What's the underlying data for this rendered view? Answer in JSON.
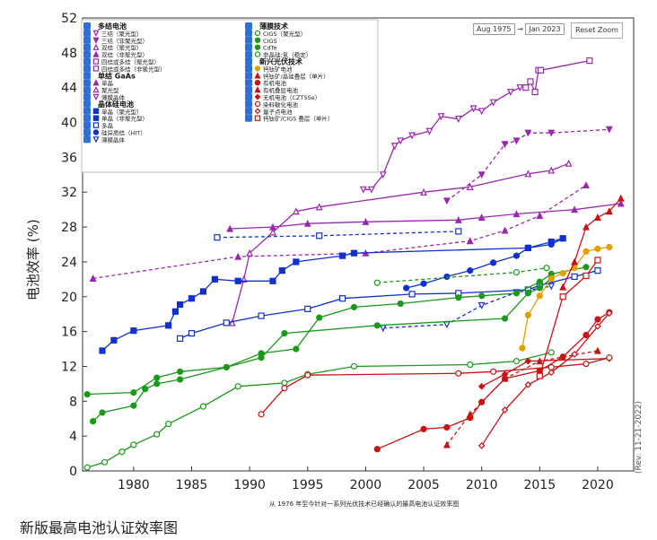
{
  "range": {
    "start": "Aug 1975",
    "arrow": "→",
    "end": "Jan 2023"
  },
  "reset_label": "Reset Zoom",
  "caption_note": "从 1976 年至今针对一系列光伏技术已经确认的最高电池认证效率图",
  "bottom_title": "新版最高电池认证效率图",
  "rev_label": "(Rev. 11-21-2022)",
  "legend_groups": [
    {
      "title": "多结电池",
      "items": [
        {
          "label": "三结（聚光型）",
          "color": "#9b27b0",
          "marker": "tri-down-open"
        },
        {
          "label": "三结（非聚光型）",
          "color": "#9b27b0",
          "marker": "tri-down"
        },
        {
          "label": "双结（聚光型）",
          "color": "#9b27b0",
          "marker": "tri-open"
        },
        {
          "label": "双结（非聚光型）",
          "color": "#9b27b0",
          "marker": "tri"
        },
        {
          "label": "四结或多结（聚光型）",
          "color": "#9b27b0",
          "marker": "sq-open"
        },
        {
          "label": "四结或多结（非聚光型）",
          "color": "#9b27b0",
          "marker": "sq-open"
        }
      ]
    },
    {
      "title": "单结 GaAs",
      "items": [
        {
          "label": "单晶",
          "color": "#9b27b0",
          "marker": "tri"
        },
        {
          "label": "聚光型",
          "color": "#9b27b0",
          "marker": "tri-open"
        },
        {
          "label": "薄膜晶体",
          "color": "#9b27b0",
          "marker": "tri-down-open"
        }
      ]
    },
    {
      "title": "晶体硅电池",
      "items": [
        {
          "label": "单晶（聚光型）",
          "color": "#1030d0",
          "marker": "sq"
        },
        {
          "label": "单晶（非聚光型）",
          "color": "#1030d0",
          "marker": "sq"
        },
        {
          "label": "多晶",
          "color": "#1030d0",
          "marker": "sq-open"
        },
        {
          "label": "硅异质结（HIT）",
          "color": "#1030d0",
          "marker": "circle"
        },
        {
          "label": "薄膜晶体",
          "color": "#1030d0",
          "marker": "tri-down-open"
        }
      ]
    },
    {
      "title": "薄膜技术",
      "items": [
        {
          "label": "CIGS（聚光型）",
          "color": "#1a9a1a",
          "marker": "circle-open"
        },
        {
          "label": "CIGS",
          "color": "#1a9a1a",
          "marker": "circle"
        },
        {
          "label": "CdTe",
          "color": "#1a9a1a",
          "marker": "circle"
        },
        {
          "label": "非晶硅:氢（稳定）",
          "color": "#1a9a1a",
          "marker": "circle-open"
        }
      ]
    },
    {
      "title": "新兴光伏技术",
      "items": [
        {
          "label": "钙钛矿电池",
          "color": "#e0a000",
          "marker": "circle"
        },
        {
          "label": "钙钛矿/晶硅叠层（单片）",
          "color": "#cc1111",
          "marker": "tri"
        },
        {
          "label": "有机电池",
          "color": "#cc1111",
          "marker": "circle"
        },
        {
          "label": "有机叠层电池",
          "color": "#cc1111",
          "marker": "tri"
        },
        {
          "label": "无机电池（CZTSSe）",
          "color": "#cc1111",
          "marker": "diamond"
        },
        {
          "label": "染料敏化电池",
          "color": "#cc1111",
          "marker": "circle-open"
        },
        {
          "label": "量子点电池",
          "color": "#cc1111",
          "marker": "diamond-open"
        },
        {
          "label": "钙钛矿/CIGS 叠层（单片）",
          "color": "#cc1111",
          "marker": "sq-open"
        }
      ]
    }
  ],
  "chart_data": {
    "type": "line",
    "ylabel": "电池效率 (%)",
    "xlabel": "",
    "xlim": [
      1975.6,
      2023.1
    ],
    "ylim": [
      0,
      52
    ],
    "xticks": [
      1980,
      1985,
      1990,
      1995,
      2000,
      2005,
      2010,
      2015,
      2020
    ],
    "yticks": [
      0,
      4,
      8,
      12,
      16,
      20,
      24,
      28,
      32,
      36,
      40,
      44,
      48,
      52
    ],
    "series": [
      {
        "color": "#9b27b0",
        "marker": "sq-open",
        "points": [
          [
            2013.8,
            44.0
          ],
          [
            2014.2,
            44.7
          ],
          [
            2014.6,
            43.5
          ],
          [
            2014.9,
            46.0
          ],
          [
            2015.1,
            46.0
          ],
          [
            2019.3,
            47.1
          ]
        ]
      },
      {
        "color": "#9b27b0",
        "marker": "tri-down-open",
        "points": [
          [
            1999.8,
            32.3
          ],
          [
            2000.5,
            32.3
          ],
          [
            2001.5,
            34.0
          ],
          [
            2002.5,
            37.3
          ],
          [
            2003,
            37.9
          ],
          [
            2004,
            38.5
          ],
          [
            2005.5,
            39.0
          ],
          [
            2006.5,
            40.7
          ],
          [
            2008,
            40.4
          ],
          [
            2009.3,
            41.6
          ],
          [
            2010,
            41.3
          ],
          [
            2011,
            42.3
          ],
          [
            2012.5,
            43.5
          ],
          [
            2013.3,
            44.0
          ]
        ]
      },
      {
        "color": "#9b27b0",
        "marker": "tri-down",
        "dash": true,
        "points": [
          [
            2007,
            31.0
          ],
          [
            2010,
            34.0
          ],
          [
            2012,
            37.5
          ],
          [
            2013,
            37.9
          ],
          [
            2014,
            38.8
          ],
          [
            2016,
            38.8
          ],
          [
            2021,
            39.2
          ]
        ]
      },
      {
        "color": "#9b27b0",
        "marker": "tri-open",
        "points": [
          [
            1988.5,
            17.0
          ],
          [
            1989.5,
            22.0
          ],
          [
            1990,
            25.0
          ],
          [
            1992,
            27.4
          ],
          [
            1994,
            29.8
          ],
          [
            1996,
            30.3
          ],
          [
            2005,
            32.0
          ],
          [
            2009,
            32.6
          ],
          [
            2014,
            34.1
          ],
          [
            2016,
            34.5
          ],
          [
            2017.5,
            35.3
          ]
        ]
      },
      {
        "color": "#9b27b0",
        "marker": "tri",
        "points": [
          [
            1988.3,
            27.8
          ],
          [
            1992,
            28.0
          ],
          [
            1995,
            28.4
          ],
          [
            2000,
            28.6
          ],
          [
            2008,
            28.8
          ],
          [
            2010,
            29.1
          ],
          [
            2013,
            29.5
          ],
          [
            2018,
            30.0
          ],
          [
            2022,
            30.7
          ]
        ]
      },
      {
        "color": "#9b27b0",
        "marker": "tri",
        "dash": true,
        "points": [
          [
            1976.5,
            22.1
          ],
          [
            1989,
            24.6
          ],
          [
            2000,
            25.0
          ],
          [
            2009,
            26.4
          ],
          [
            2012,
            27.6
          ],
          [
            2015,
            29.3
          ],
          [
            2019,
            32.8
          ]
        ]
      },
      {
        "color": "#1030d0",
        "marker": "sq",
        "points": [
          [
            1977.3,
            13.8
          ],
          [
            1978.3,
            15.0
          ],
          [
            1980,
            16.1
          ],
          [
            1983,
            16.7
          ],
          [
            1983.6,
            18.3
          ],
          [
            1984,
            19.1
          ],
          [
            1985,
            19.8
          ],
          [
            1986,
            20.6
          ],
          [
            1987,
            22.0
          ],
          [
            1989,
            21.8
          ],
          [
            1992,
            21.8
          ],
          [
            1992.8,
            23.0
          ],
          [
            1994,
            24.0
          ],
          [
            1998,
            24.7
          ],
          [
            1999,
            25.0
          ],
          [
            2014,
            25.6
          ],
          [
            2016,
            26.3
          ],
          [
            2017,
            26.7
          ]
        ]
      },
      {
        "color": "#1030d0",
        "marker": "sq-open",
        "points": [
          [
            1984,
            15.2
          ],
          [
            1985,
            15.8
          ],
          [
            1988,
            17.0
          ],
          [
            1991,
            17.8
          ],
          [
            1995,
            18.6
          ],
          [
            1998,
            19.8
          ],
          [
            2004,
            20.3
          ],
          [
            2008,
            20.4
          ],
          [
            2014,
            20.8
          ],
          [
            2015,
            21.3
          ],
          [
            2018,
            22.3
          ],
          [
            2020,
            23.0
          ]
        ]
      },
      {
        "color": "#1030d0",
        "marker": "circle",
        "points": [
          [
            2003.5,
            21.0
          ],
          [
            2005,
            21.5
          ],
          [
            2007,
            22.3
          ],
          [
            2009,
            23.0
          ],
          [
            2011,
            23.9
          ],
          [
            2013,
            24.7
          ],
          [
            2014,
            25.6
          ],
          [
            2016,
            26.0
          ],
          [
            2017,
            26.7
          ]
        ]
      },
      {
        "color": "#1030d0",
        "marker": "sq-open",
        "dash": true,
        "points": [
          [
            1987.2,
            26.8
          ],
          [
            1996,
            27.0
          ],
          [
            2008,
            27.5
          ]
        ]
      },
      {
        "color": "#1030d0",
        "marker": "tri-down-open",
        "dash": true,
        "points": [
          [
            2001.5,
            16.4
          ],
          [
            2007,
            16.8
          ],
          [
            2010,
            19.0
          ],
          [
            2013,
            20.5
          ],
          [
            2016,
            21.2
          ]
        ]
      },
      {
        "color": "#1a9a1a",
        "marker": "circle",
        "points": [
          [
            1976.5,
            5.7
          ],
          [
            1977.3,
            6.7
          ],
          [
            1980,
            7.5
          ],
          [
            1981,
            9.4
          ],
          [
            1982,
            10.0
          ],
          [
            1984,
            10.5
          ],
          [
            1988,
            11.9
          ],
          [
            1991,
            13.5
          ],
          [
            1994,
            14.0
          ],
          [
            1996,
            17.6
          ],
          [
            1999,
            18.8
          ],
          [
            2003,
            19.2
          ],
          [
            2008,
            19.9
          ],
          [
            2010,
            20.1
          ],
          [
            2013,
            20.4
          ],
          [
            2015,
            21.7
          ],
          [
            2016,
            22.6
          ],
          [
            2019,
            23.4
          ]
        ]
      },
      {
        "color": "#1a9a1a",
        "marker": "circle-open",
        "dash": true,
        "points": [
          [
            2001,
            21.6
          ],
          [
            2013,
            22.8
          ],
          [
            2015.6,
            23.3
          ]
        ]
      },
      {
        "color": "#1a9a1a",
        "marker": "circle-open",
        "points": [
          [
            1976,
            0.4
          ],
          [
            1977.5,
            1.0
          ],
          [
            1979,
            2.2
          ],
          [
            1980,
            3.0
          ],
          [
            1982,
            4.2
          ],
          [
            1983,
            5.4
          ],
          [
            1986,
            7.4
          ],
          [
            1989,
            9.7
          ],
          [
            1993,
            10.1
          ],
          [
            1995,
            11.1
          ],
          [
            1999,
            12.0
          ],
          [
            2009,
            12.2
          ],
          [
            2013,
            12.6
          ],
          [
            2016,
            13.6
          ]
        ]
      },
      {
        "color": "#1a9a1a",
        "marker": "circle",
        "points": [
          [
            1976,
            8.8
          ],
          [
            1980,
            9.0
          ],
          [
            1982,
            10.7
          ],
          [
            1984,
            11.4
          ],
          [
            1988,
            11.9
          ],
          [
            1991,
            13.0
          ],
          [
            1993,
            15.8
          ],
          [
            2001,
            16.7
          ],
          [
            2012,
            17.5
          ],
          [
            2014,
            20.4
          ],
          [
            2015,
            21.0
          ],
          [
            2016,
            22.1
          ]
        ]
      },
      {
        "color": "#e0a000",
        "marker": "circle",
        "points": [
          [
            2013.5,
            14.1
          ],
          [
            2014,
            17.9
          ],
          [
            2015,
            20.1
          ],
          [
            2016,
            22.1
          ],
          [
            2017,
            22.7
          ],
          [
            2018,
            23.3
          ],
          [
            2019,
            25.2
          ],
          [
            2020,
            25.5
          ],
          [
            2021,
            25.7
          ]
        ]
      },
      {
        "color": "#cc1111",
        "marker": "tri",
        "points": [
          [
            2017,
            21.1
          ],
          [
            2018,
            24.0
          ],
          [
            2019,
            28.0
          ],
          [
            2020,
            29.1
          ],
          [
            2021,
            29.8
          ],
          [
            2022,
            31.3
          ]
        ]
      },
      {
        "color": "#cc1111",
        "marker": "circle",
        "points": [
          [
            2001,
            2.5
          ],
          [
            2005,
            4.8
          ],
          [
            2007,
            5.0
          ],
          [
            2009,
            6.1
          ],
          [
            2010,
            7.9
          ],
          [
            2012,
            10.6
          ],
          [
            2015,
            11.5
          ],
          [
            2017,
            13.1
          ],
          [
            2019,
            15.6
          ],
          [
            2020,
            17.4
          ],
          [
            2021,
            18.2
          ]
        ]
      },
      {
        "color": "#cc1111",
        "marker": "tri",
        "dash": true,
        "points": [
          [
            2007,
            3.0
          ],
          [
            2009,
            6.5
          ],
          [
            2012,
            10.6
          ],
          [
            2015,
            12.6
          ],
          [
            2020,
            13.8
          ]
        ]
      },
      {
        "color": "#cc1111",
        "marker": "diamond",
        "points": [
          [
            2010,
            9.7
          ],
          [
            2012,
            11.1
          ],
          [
            2014,
            12.6
          ],
          [
            2021,
            12.9
          ]
        ]
      },
      {
        "color": "#cc1111",
        "marker": "circle-open",
        "points": [
          [
            1991,
            6.5
          ],
          [
            1993,
            9.5
          ],
          [
            1995,
            11.0
          ],
          [
            2008,
            11.2
          ],
          [
            2011,
            11.4
          ],
          [
            2016,
            11.9
          ],
          [
            2019,
            12.3
          ],
          [
            2021,
            13.0
          ]
        ]
      },
      {
        "color": "#cc1111",
        "marker": "diamond-open",
        "points": [
          [
            2010,
            2.9
          ],
          [
            2012,
            7.0
          ],
          [
            2014,
            9.9
          ],
          [
            2016,
            11.3
          ],
          [
            2018,
            13.4
          ],
          [
            2020,
            16.6
          ],
          [
            2021,
            18.1
          ]
        ]
      },
      {
        "color": "#cc1111",
        "marker": "sq-open",
        "points": [
          [
            2015,
            10.9
          ],
          [
            2017,
            20.0
          ],
          [
            2019,
            22.4
          ],
          [
            2020,
            24.2
          ]
        ]
      }
    ]
  }
}
